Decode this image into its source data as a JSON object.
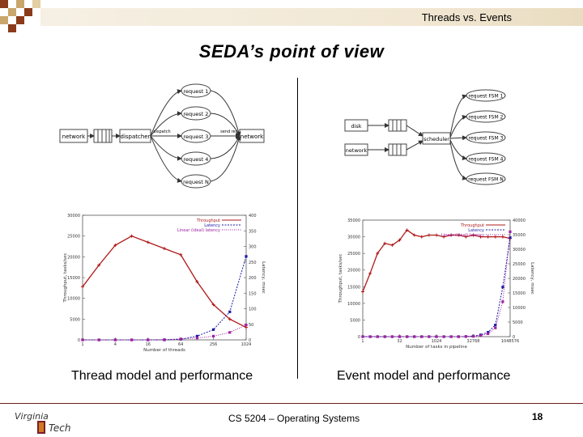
{
  "header": {
    "title": "Threads vs. Events"
  },
  "slide": {
    "title": "SEDA’s point of view"
  },
  "thread_diagram": {
    "network_in": "network",
    "dispatcher": "dispatcher",
    "dispatch": "dispatch",
    "send_result": "send result",
    "network_out": "network",
    "requests": [
      "request 1",
      "request 2",
      "request 3",
      "request 4",
      "request N"
    ]
  },
  "event_diagram": {
    "disk": "disk",
    "network": "network",
    "scheduler": "scheduler",
    "requests": [
      "request FSM 1",
      "request FSM 2",
      "request FSM 3",
      "request FSM 4",
      "request FSM N"
    ]
  },
  "chart_data": [
    {
      "type": "line",
      "xlabel": "Number of threads",
      "ylabel": "Throughput, tasks/sec",
      "y2label": "Latency, msec",
      "x_ticks": [
        "1",
        "4",
        "16",
        "64",
        "256",
        "1024"
      ],
      "ylim": [
        0,
        30000
      ],
      "y_ticks": [
        "0",
        "5000",
        "10000",
        "15000",
        "20000",
        "25000",
        "30000"
      ],
      "y2lim": [
        0,
        400
      ],
      "y2_ticks": [
        "0",
        "50",
        "100",
        "150",
        "200",
        "250",
        "300",
        "350",
        "400"
      ],
      "legend": [
        "Throughput",
        "Latency",
        "Linear (ideal) latency"
      ],
      "legend_position": "top-right",
      "series": [
        {
          "name": "Throughput",
          "axis": "left",
          "color": "#b01818",
          "x_pos": [
            0,
            1,
            2,
            3,
            4,
            5,
            6,
            7,
            8,
            9,
            10
          ],
          "values": [
            12800,
            18000,
            22800,
            25000,
            23500,
            22000,
            20500,
            14000,
            8500,
            5000,
            3000
          ]
        },
        {
          "name": "Latency",
          "axis": "right",
          "color": "#1a1aa6",
          "x_pos": [
            0,
            1,
            2,
            3,
            4,
            5,
            6,
            7,
            8,
            9,
            10
          ],
          "values": [
            0,
            0,
            0,
            0,
            0,
            0,
            2,
            12,
            33,
            90,
            268
          ]
        },
        {
          "name": "Linear (ideal) latency",
          "axis": "right",
          "color": "#a020a0",
          "x_pos": [
            0,
            1,
            2,
            3,
            4,
            5,
            6,
            7,
            8,
            9,
            10
          ],
          "values": [
            0,
            0,
            0,
            0,
            0,
            1,
            3,
            6,
            12,
            24,
            48
          ]
        }
      ]
    },
    {
      "type": "line",
      "xlabel": "Number of tasks in pipeline",
      "ylabel": "Throughput, tasks/sec",
      "y2label": "Latency, msec",
      "x_ticks": [
        "1",
        "32",
        "1024",
        "32768",
        "1048576"
      ],
      "ylim": [
        0,
        35000
      ],
      "y_ticks": [
        "0",
        "5000",
        "10000",
        "15000",
        "20000",
        "25000",
        "30000",
        "35000"
      ],
      "y2lim": [
        0,
        40000
      ],
      "y2_ticks": [
        "0",
        "5000",
        "10000",
        "15000",
        "20000",
        "25000",
        "30000",
        "35000",
        "40000"
      ],
      "legend": [
        "Throughput",
        "Latency",
        "Linear (ideal) latency"
      ],
      "legend_position": "top-right",
      "series": [
        {
          "name": "Throughput",
          "axis": "left",
          "color": "#b01818",
          "x_pos": [
            0,
            1,
            2,
            3,
            4,
            5,
            6,
            7,
            8,
            9,
            10,
            11,
            12,
            13,
            14,
            15,
            16,
            17,
            18,
            19,
            20
          ],
          "values": [
            13500,
            19000,
            25000,
            28000,
            27500,
            29000,
            32000,
            30500,
            30000,
            30500,
            30500,
            30000,
            30500,
            30500,
            30000,
            30500,
            30000,
            30000,
            30000,
            30000,
            29500
          ]
        },
        {
          "name": "Latency",
          "axis": "right",
          "color": "#1a1aa6",
          "x_pos": [
            0,
            1,
            2,
            3,
            4,
            5,
            6,
            7,
            8,
            9,
            10,
            11,
            12,
            13,
            14,
            15,
            16,
            17,
            18,
            19,
            20
          ],
          "values": [
            0,
            0,
            0,
            0,
            0,
            0,
            0,
            0,
            0,
            0,
            0,
            0,
            0,
            0,
            50,
            200,
            600,
            1500,
            4000,
            17000,
            34000
          ]
        },
        {
          "name": "Linear (ideal) latency",
          "axis": "right",
          "color": "#a020a0",
          "x_pos": [
            0,
            1,
            2,
            3,
            4,
            5,
            6,
            7,
            8,
            9,
            10,
            11,
            12,
            13,
            14,
            15,
            16,
            17,
            18,
            19,
            20
          ],
          "values": [
            0,
            0,
            0,
            0,
            0,
            0,
            0,
            0,
            0,
            0,
            0,
            0,
            0,
            0,
            30,
            100,
            400,
            1000,
            3000,
            12000,
            36000
          ]
        }
      ]
    }
  ],
  "captions": {
    "left": "Thread model and performance",
    "right": "Event model and performance"
  },
  "footer": {
    "course": "CS 5204 – Operating Systems",
    "page": "18",
    "logo_text_1": "Virginia",
    "logo_text_2": "Tech"
  }
}
